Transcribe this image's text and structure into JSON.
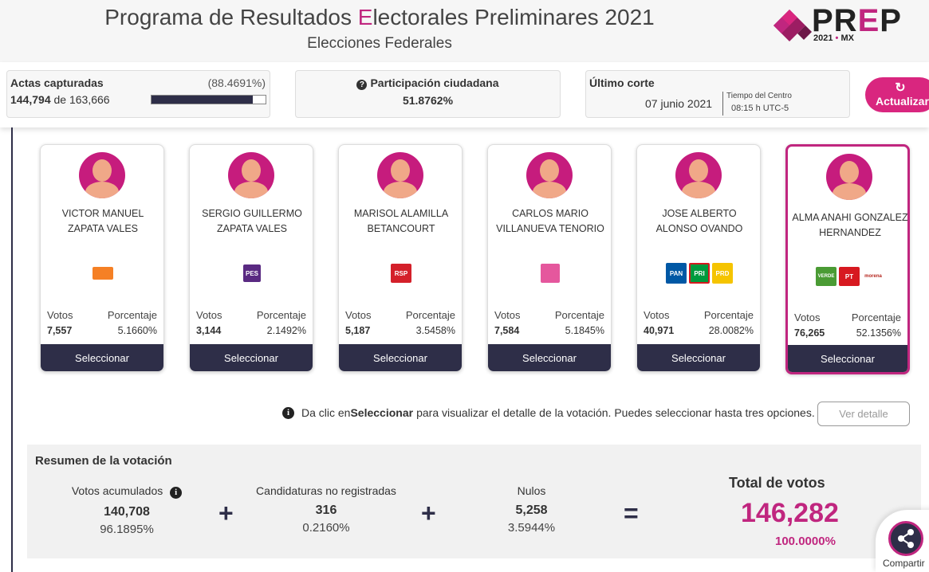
{
  "header": {
    "title_pre": "Programa de Resultados ",
    "title_hl": "E",
    "title_post": "lectorales Preliminares 2021",
    "subtitle": "Elecciones Federales",
    "logo_pre": "PR",
    "logo_e": "E",
    "logo_post": "P",
    "logo_year": "2021",
    "logo_dot": "•",
    "logo_country": "MX"
  },
  "stats": {
    "actas_label": "Actas capturadas",
    "actas_pct": "(88.4691%)",
    "actas_count": "144,794",
    "actas_of": "de",
    "actas_total": "163,666",
    "actas_progress": 0.884691,
    "participacion_label": "Participación ciudadana",
    "participacion_value": "51.8762%",
    "corte_label": "Último corte",
    "corte_date": "07 junio 2021",
    "corte_tz_label": "Tiempo del Centro",
    "corte_time": "08:15 h UTC-5",
    "refresh_label": "Actualizar"
  },
  "card_labels": {
    "votos": "Votos",
    "porcentaje": "Porcentaje",
    "select": "Seleccionar"
  },
  "candidates": [
    {
      "name": "VICTOR MANUEL ZAPATA VALES",
      "parties": [
        "MC"
      ],
      "votes": "7,557",
      "pct": "5.1660%"
    },
    {
      "name": "SERGIO GUILLERMO ZAPATA VALES",
      "parties": [
        "PES"
      ],
      "votes": "3,144",
      "pct": "2.1492%"
    },
    {
      "name": "MARISOL ALAMILLA BETANCOURT",
      "parties": [
        "RSP"
      ],
      "votes": "5,187",
      "pct": "3.5458%"
    },
    {
      "name": "CARLOS MARIO VILLANUEVA TENORIO",
      "parties": [
        "FXM"
      ],
      "votes": "7,584",
      "pct": "5.1845%"
    },
    {
      "name": "JOSE ALBERTO ALONSO OVANDO",
      "parties": [
        "PAN",
        "PRI",
        "PRD"
      ],
      "votes": "40,971",
      "pct": "28.0082%"
    },
    {
      "name": "ALMA ANAHI GONZALEZ HERNANDEZ",
      "parties": [
        "VERDE",
        "PT",
        "morena"
      ],
      "votes": "76,265",
      "pct": "52.1356%"
    }
  ],
  "info": {
    "text_pre": "Da clic en ",
    "text_bold": "Seleccionar",
    "text_post": " para visualizar el detalle de la votación. Puedes seleccionar hasta tres opciones.",
    "detail_button": "Ver detalle"
  },
  "summary": {
    "title": "Resumen de la votación",
    "acumulados_label": "Votos acumulados",
    "acumulados_value": "140,708",
    "acumulados_pct": "96.1895%",
    "no_registradas_label": "Candidaturas no registradas",
    "no_registradas_value": "316",
    "no_registradas_pct": "0.2160%",
    "nulos_label": "Nulos",
    "nulos_value": "5,258",
    "nulos_pct": "3.5944%",
    "plus": "+",
    "equals": "=",
    "total_label": "Total de votos",
    "total_value": "146,282",
    "total_pct": "100.0000%"
  },
  "share": {
    "label": "Compartir"
  }
}
